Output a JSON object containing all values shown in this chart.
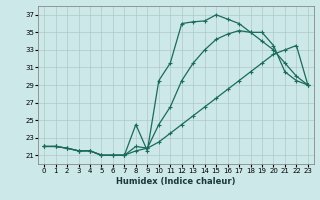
{
  "title": "",
  "xlabel": "Humidex (Indice chaleur)",
  "xlim": [
    -0.5,
    23.5
  ],
  "ylim": [
    20.0,
    38.0
  ],
  "xticks": [
    0,
    1,
    2,
    3,
    4,
    5,
    6,
    7,
    8,
    9,
    10,
    11,
    12,
    13,
    14,
    15,
    16,
    17,
    18,
    19,
    20,
    21,
    22,
    23
  ],
  "yticks": [
    21,
    23,
    25,
    27,
    29,
    31,
    33,
    35,
    37
  ],
  "background_color": "#cce8e8",
  "grid_color": "#b0c8c8",
  "line_color": "#1a6b5a",
  "line1_x": [
    0,
    1,
    2,
    3,
    4,
    5,
    6,
    7,
    8,
    9,
    10,
    11,
    12,
    13,
    14,
    15,
    16,
    17,
    18,
    19,
    20,
    21,
    22,
    23
  ],
  "line1_y": [
    22.0,
    22.0,
    21.8,
    21.5,
    21.5,
    21.0,
    21.0,
    21.0,
    24.5,
    21.5,
    29.5,
    31.5,
    36.0,
    36.2,
    36.3,
    37.0,
    36.5,
    36.0,
    35.0,
    35.0,
    33.5,
    30.5,
    29.5,
    29.0
  ],
  "line2_x": [
    0,
    1,
    2,
    3,
    4,
    5,
    6,
    7,
    8,
    9,
    10,
    11,
    12,
    13,
    14,
    15,
    16,
    17,
    18,
    19,
    20,
    21,
    22,
    23
  ],
  "line2_y": [
    22.0,
    22.0,
    21.8,
    21.5,
    21.5,
    21.0,
    21.0,
    21.0,
    22.0,
    21.8,
    24.5,
    26.5,
    29.5,
    31.5,
    33.0,
    34.2,
    34.8,
    35.2,
    35.0,
    34.0,
    33.0,
    31.5,
    30.0,
    29.0
  ],
  "line3_x": [
    0,
    1,
    2,
    3,
    4,
    5,
    6,
    7,
    8,
    9,
    10,
    11,
    12,
    13,
    14,
    15,
    16,
    17,
    18,
    19,
    20,
    21,
    22,
    23
  ],
  "line3_y": [
    22.0,
    22.0,
    21.8,
    21.5,
    21.5,
    21.0,
    21.0,
    21.0,
    21.5,
    21.8,
    22.5,
    23.5,
    24.5,
    25.5,
    26.5,
    27.5,
    28.5,
    29.5,
    30.5,
    31.5,
    32.5,
    33.0,
    33.5,
    29.0
  ]
}
